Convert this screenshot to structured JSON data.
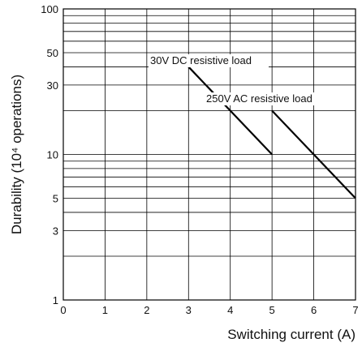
{
  "chart_data": {
    "type": "line",
    "title": "",
    "xlabel": "Switching current (A)",
    "ylabel": "Durability (10⁴ operations)",
    "xlim": [
      0,
      7
    ],
    "ylim": [
      1,
      100
    ],
    "y_scale": "log",
    "grid": true,
    "x_ticks": [
      "0",
      "1",
      "2",
      "3",
      "4",
      "5",
      "6",
      "7"
    ],
    "y_ticks": [
      {
        "value": 100,
        "label": "100"
      },
      {
        "value": 50,
        "label": "50"
      },
      {
        "value": 30,
        "label": "30"
      },
      {
        "value": 10,
        "label": "10"
      },
      {
        "value": 5,
        "label": "5"
      },
      {
        "value": 3,
        "label": "3"
      },
      {
        "value": 1,
        "label": "1"
      }
    ],
    "series": [
      {
        "name": "30V DC resistive load",
        "x": [
          3,
          5
        ],
        "y": [
          40,
          10
        ]
      },
      {
        "name": "250V AC resistive load",
        "x": [
          5,
          7
        ],
        "y": [
          20,
          5
        ]
      }
    ],
    "colors": {
      "line": "#000000",
      "grid": "#000000",
      "background": "#ffffff"
    }
  }
}
